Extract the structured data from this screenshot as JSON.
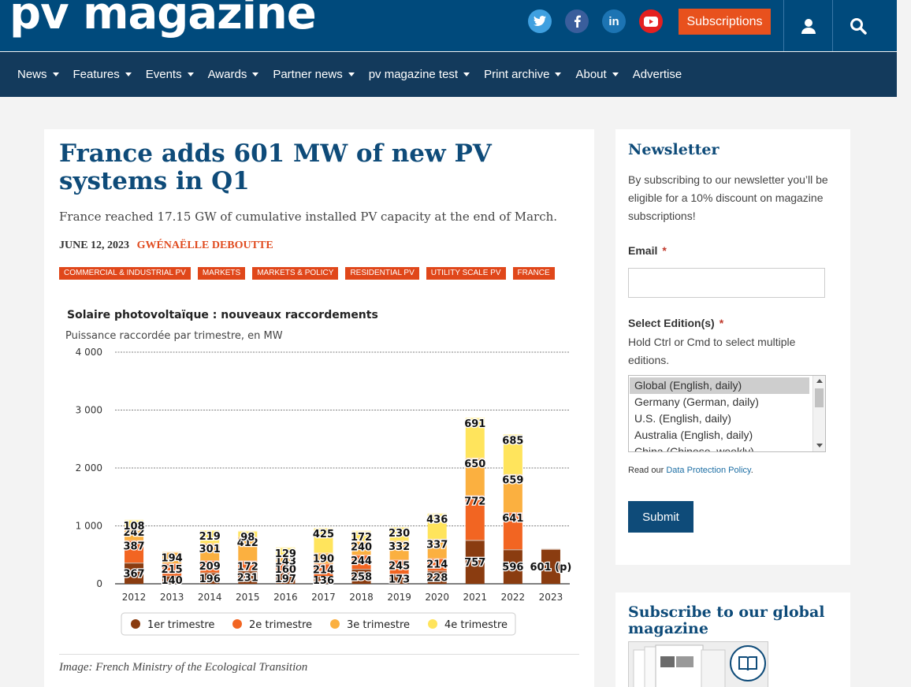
{
  "header": {
    "logo": "pv magazine",
    "subscriptions_label": "Subscriptions",
    "social": [
      {
        "name": "twitter",
        "glyph": "t"
      },
      {
        "name": "facebook",
        "glyph": "f"
      },
      {
        "name": "linkedin",
        "glyph": "in"
      },
      {
        "name": "youtube",
        "glyph": "▶"
      }
    ]
  },
  "nav": {
    "items": [
      {
        "label": "News",
        "dropdown": true
      },
      {
        "label": "Features",
        "dropdown": true
      },
      {
        "label": "Events",
        "dropdown": true
      },
      {
        "label": "Awards",
        "dropdown": true
      },
      {
        "label": "Partner news",
        "dropdown": true
      },
      {
        "label": "pv magazine test",
        "dropdown": true
      },
      {
        "label": "Print archive",
        "dropdown": true
      },
      {
        "label": "About",
        "dropdown": true
      },
      {
        "label": "Advertise",
        "dropdown": false
      }
    ]
  },
  "article": {
    "title": "France adds 601 MW of new PV systems in Q1",
    "subtitle": "France reached 17.15 GW of cumulative installed PV capacity at the end of March.",
    "date": "JUNE 12, 2023",
    "author": "GWÉNAËLLE DEBOUTTE",
    "tags": [
      "COMMERCIAL & INDUSTRIAL PV",
      "MARKETS",
      "MARKETS & POLICY",
      "RESIDENTIAL PV",
      "UTILITY SCALE PV",
      "FRANCE"
    ],
    "caption": "Image: French Ministry of the Ecological Transition"
  },
  "chart_data": {
    "type": "bar",
    "stacked": true,
    "title": "Solaire photovoltaïque : nouveaux raccordements",
    "subtitle": "Puissance raccordée par trimestre, en MW",
    "categories": [
      "2012",
      "2013",
      "2014",
      "2015",
      "2016",
      "2017",
      "2018",
      "2019",
      "2020",
      "2021",
      "2022",
      "2023"
    ],
    "series": [
      {
        "name": "1er trimestre",
        "color": "#8a3c10",
        "values": [
          367,
          140,
          196,
          231,
          197,
          136,
          258,
          173,
          228,
          757,
          596,
          601
        ]
      },
      {
        "name": "2e trimestre",
        "color": "#f26522",
        "values": [
          387,
          215,
          209,
          172,
          160,
          214,
          244,
          245,
          214,
          772,
          641,
          null
        ]
      },
      {
        "name": "3e trimestre",
        "color": "#fbb040",
        "values": [
          242,
          194,
          301,
          412,
          143,
          190,
          240,
          332,
          337,
          650,
          659,
          null
        ]
      },
      {
        "name": "4e trimestre",
        "color": "#ffe45c",
        "values": [
          108,
          null,
          219,
          98,
          129,
          425,
          172,
          230,
          436,
          691,
          685,
          null
        ]
      }
    ],
    "value_labels": [
      [
        "367",
        "387",
        "242",
        "108"
      ],
      [
        "140",
        "215",
        "194",
        ""
      ],
      [
        "196",
        "209",
        "301",
        "219"
      ],
      [
        "231",
        "172",
        "412",
        "98"
      ],
      [
        "197",
        "160",
        "143",
        "129"
      ],
      [
        "136",
        "214",
        "190",
        "425"
      ],
      [
        "258",
        "244",
        "240",
        "172"
      ],
      [
        "173",
        "245",
        "332",
        "230"
      ],
      [
        "228",
        "214",
        "337",
        "436"
      ],
      [
        "757",
        "772",
        "650",
        "691"
      ],
      [
        "596",
        "641",
        "659",
        "685"
      ],
      [
        "601 (p)",
        "",
        "",
        ""
      ]
    ],
    "yticks": [
      "0",
      "1 000",
      "2 000",
      "3 000",
      "4 000"
    ],
    "ylim": [
      0,
      4000
    ],
    "grid": true,
    "legend_position": "bottom"
  },
  "newsletter": {
    "heading": "Newsletter",
    "description": "By subscribing to our newsletter you’ll be eligible for a 10% discount on magazine subscriptions!",
    "email_label": "Email",
    "required_mark": "*",
    "edition_label": "Select Edition(s)",
    "edition_hint": "Hold Ctrl or Cmd to select multiple editions.",
    "editions": [
      "Global (English, daily)",
      "Germany (German, daily)",
      "U.S. (English, daily)",
      "Australia (English, daily)",
      "China (Chinese, weekly)"
    ],
    "selected_edition": "Global (English, daily)",
    "policy_prefix": "Read our ",
    "policy_link": "Data Protection Policy",
    "policy_suffix": ".",
    "submit_label": "Submit"
  },
  "subscribe": {
    "heading": "Subscribe to our global magazine"
  }
}
